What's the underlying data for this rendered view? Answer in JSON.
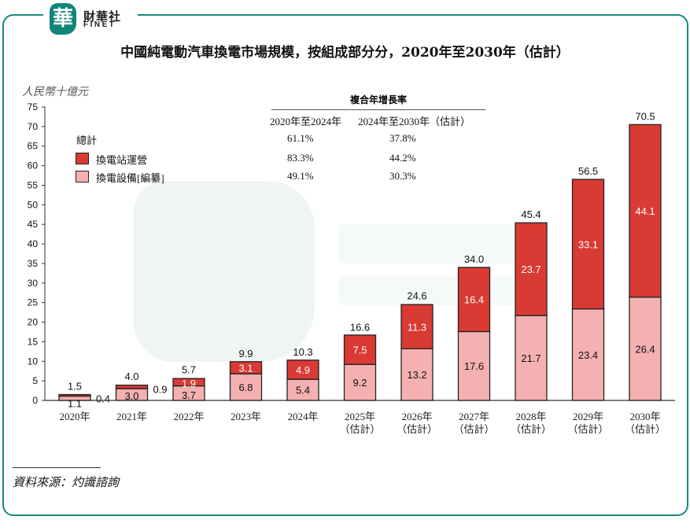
{
  "logo": {
    "glyph": "華",
    "name_cn": "財華社",
    "name_en": "FINET"
  },
  "title": "中國純電動汽車換電市場規模，按組成部分分，2020年至2030年（估計）",
  "unit": "人民幣十億元",
  "cagr_table": {
    "heading": "複合年增長率",
    "columns": [
      "2020年至2024年",
      "2024年至2030年（估計）"
    ],
    "rows": [
      {
        "label": "總計",
        "values": [
          "61.1%",
          "37.8%"
        ]
      },
      {
        "label": "換電站運營",
        "values": [
          "83.3%",
          "44.2%"
        ],
        "color": "#d93a33"
      },
      {
        "label": "換電設備[編纂]",
        "values": [
          "49.1%",
          "30.3%"
        ],
        "color": "#f5b1b1"
      }
    ]
  },
  "chart_data": {
    "type": "bar",
    "stacked": true,
    "title": "中國純電動汽車換電市場規模，按組成部分分，2020年至2030年（估計）",
    "ylabel": "人民幣十億元",
    "ylim": [
      0,
      75
    ],
    "yticks": [
      0,
      5,
      10,
      15,
      20,
      25,
      30,
      35,
      40,
      45,
      50,
      55,
      60,
      65,
      70,
      75
    ],
    "grid": false,
    "categories": [
      "2020年",
      "2021年",
      "2022年",
      "2023年",
      "2024年",
      "2025年\n（估計）",
      "2026年\n（估計）",
      "2027年\n（估計）",
      "2028年\n（估計）",
      "2029年\n（估計）",
      "2030年\n（估計）"
    ],
    "series": [
      {
        "name": "換電設備[編纂]",
        "color": "#f5b1b1",
        "values": [
          1.1,
          3.0,
          3.7,
          6.8,
          5.4,
          9.2,
          13.2,
          17.6,
          21.7,
          23.4,
          26.4
        ]
      },
      {
        "name": "換電站運營",
        "color": "#d93a33",
        "values": [
          0.4,
          0.9,
          1.9,
          3.1,
          4.9,
          7.5,
          11.3,
          16.4,
          23.7,
          33.1,
          44.1
        ]
      }
    ],
    "totals": [
      1.5,
      4.0,
      5.7,
      9.9,
      10.3,
      16.6,
      24.6,
      34.0,
      45.4,
      56.5,
      70.5
    ]
  },
  "source": "資料來源：灼識諮詢",
  "colors": {
    "frame": "#1a8a80",
    "operations": "#d93a33",
    "equipment": "#f5b1b1"
  }
}
